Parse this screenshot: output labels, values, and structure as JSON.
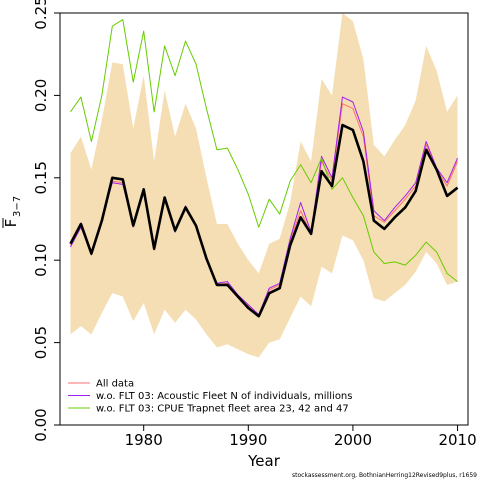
{
  "chart_data": {
    "type": "line",
    "xlabel": "Year",
    "ylabel_main": "F",
    "ylabel_sub": "3−7",
    "xlim": [
      1972,
      2011
    ],
    "ylim": [
      0,
      0.25
    ],
    "x_ticks": [
      "1980",
      "1990",
      "2000",
      "2010"
    ],
    "y_ticks": [
      "0.00",
      "0.05",
      "0.10",
      "0.15",
      "0.20",
      "0.25"
    ],
    "x": [
      1973,
      1974,
      1975,
      1976,
      1977,
      1978,
      1979,
      1980,
      1981,
      1982,
      1983,
      1984,
      1985,
      1986,
      1987,
      1988,
      1989,
      1990,
      1991,
      1992,
      1993,
      1994,
      1995,
      1996,
      1997,
      1998,
      1999,
      2000,
      2001,
      2002,
      2003,
      2004,
      2005,
      2006,
      2007,
      2008,
      2009,
      2010
    ],
    "band": {
      "color": "#f5deb3",
      "lower": [
        0.055,
        0.06,
        0.055,
        0.068,
        0.08,
        0.078,
        0.063,
        0.074,
        0.055,
        0.07,
        0.062,
        0.07,
        0.064,
        0.055,
        0.047,
        0.049,
        0.046,
        0.043,
        0.041,
        0.05,
        0.052,
        0.065,
        0.078,
        0.072,
        0.096,
        0.092,
        0.115,
        0.112,
        0.1,
        0.077,
        0.075,
        0.08,
        0.085,
        0.093,
        0.105,
        0.098,
        0.085,
        0.087
      ],
      "upper": [
        0.165,
        0.175,
        0.155,
        0.185,
        0.22,
        0.219,
        0.18,
        0.212,
        0.16,
        0.203,
        0.175,
        0.195,
        0.18,
        0.15,
        0.122,
        0.122,
        0.11,
        0.1,
        0.092,
        0.11,
        0.113,
        0.135,
        0.172,
        0.16,
        0.21,
        0.2,
        0.25,
        0.245,
        0.222,
        0.17,
        0.163,
        0.173,
        0.182,
        0.197,
        0.23,
        0.215,
        0.19,
        0.2
      ]
    },
    "series": [
      {
        "name": "All data",
        "color": "#ff6f6f",
        "width": 1,
        "values": [
          0.109,
          0.121,
          0.103,
          0.124,
          0.148,
          0.147,
          0.12,
          0.142,
          0.106,
          0.137,
          0.118,
          0.132,
          0.12,
          0.1,
          0.085,
          0.086,
          0.078,
          0.072,
          0.066,
          0.082,
          0.085,
          0.112,
          0.13,
          0.116,
          0.16,
          0.148,
          0.195,
          0.192,
          0.175,
          0.127,
          0.123,
          0.13,
          0.137,
          0.145,
          0.17,
          0.155,
          0.145,
          0.16
        ]
      },
      {
        "name": "w.o. FLT 03: Acoustic Fleet  N of individuals, millions",
        "color": "#a020f0",
        "width": 1,
        "values": [
          0.108,
          0.12,
          0.104,
          0.125,
          0.147,
          0.146,
          0.121,
          0.141,
          0.107,
          0.138,
          0.117,
          0.133,
          0.121,
          0.101,
          0.086,
          0.087,
          0.079,
          0.073,
          0.067,
          0.083,
          0.086,
          0.113,
          0.135,
          0.117,
          0.163,
          0.15,
          0.199,
          0.196,
          0.178,
          0.13,
          0.124,
          0.132,
          0.139,
          0.147,
          0.172,
          0.156,
          0.147,
          0.162
        ]
      },
      {
        "name": "w.o. FLT 03: CPUE Trapnet fleet area 23, 42 and 47",
        "color": "#66cc00",
        "width": 1,
        "values": [
          0.19,
          0.199,
          0.172,
          0.2,
          0.242,
          0.246,
          0.208,
          0.239,
          0.19,
          0.23,
          0.212,
          0.233,
          0.219,
          0.192,
          0.167,
          0.168,
          0.155,
          0.14,
          0.12,
          0.137,
          0.128,
          0.148,
          0.158,
          0.147,
          0.162,
          0.143,
          0.15,
          0.138,
          0.127,
          0.105,
          0.098,
          0.099,
          0.097,
          0.103,
          0.111,
          0.105,
          0.092,
          0.087
        ]
      },
      {
        "name": "",
        "color": "#000000",
        "width": 2.6,
        "values": [
          0.11,
          0.122,
          0.104,
          0.124,
          0.15,
          0.149,
          0.121,
          0.143,
          0.107,
          0.138,
          0.118,
          0.132,
          0.121,
          0.101,
          0.085,
          0.085,
          0.078,
          0.071,
          0.066,
          0.08,
          0.083,
          0.109,
          0.126,
          0.116,
          0.154,
          0.145,
          0.182,
          0.179,
          0.16,
          0.124,
          0.119,
          0.126,
          0.132,
          0.142,
          0.167,
          0.155,
          0.139,
          0.144
        ]
      }
    ],
    "legend_position": "bottom-left",
    "footnote": "stockassessment.org, BothnianHerring12Revised9plus, r1659"
  }
}
